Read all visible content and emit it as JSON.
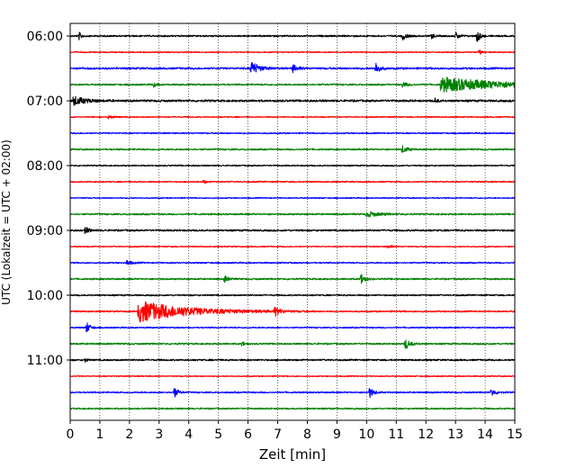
{
  "chart_data": {
    "type": "line",
    "title": "",
    "xlabel": "Zeit  [min]",
    "ylabel": "UTC (Lokalzeit = UTC + 02:00)",
    "xlim": [
      0,
      15
    ],
    "xticks": [
      0,
      1,
      2,
      3,
      4,
      5,
      6,
      7,
      8,
      9,
      10,
      11,
      12,
      13,
      14,
      15
    ],
    "grid": "vertical dotted at each minute",
    "yticks": [
      {
        "label": "06:00",
        "row": 0
      },
      {
        "label": "07:00",
        "row": 4
      },
      {
        "label": "08:00",
        "row": 8
      },
      {
        "label": "09:00",
        "row": 12
      },
      {
        "label": "10:00",
        "row": 16
      },
      {
        "label": "11:00",
        "row": 20
      }
    ],
    "row_minutes": 15,
    "row_colors": [
      "#000000",
      "#ff0000",
      "#0000ff",
      "#008000"
    ],
    "rows": [
      {
        "start": "06:00",
        "noise": 1.0,
        "events": [
          {
            "t": 0.3,
            "amp": 4,
            "dur": 0.1
          },
          {
            "t": 11.2,
            "amp": 5,
            "dur": 0.15
          },
          {
            "t": 12.2,
            "amp": 3,
            "dur": 0.1
          },
          {
            "t": 13.0,
            "amp": 4,
            "dur": 0.15
          },
          {
            "t": 13.7,
            "amp": 10,
            "dur": 0.12
          }
        ]
      },
      {
        "start": "06:15",
        "noise": 0.7,
        "events": [
          {
            "t": 13.8,
            "amp": 3,
            "dur": 0.1
          }
        ]
      },
      {
        "start": "06:30",
        "noise": 1.2,
        "events": [
          {
            "t": 6.1,
            "amp": 8,
            "dur": 0.3
          },
          {
            "t": 7.5,
            "amp": 4,
            "dur": 0.2
          },
          {
            "t": 10.3,
            "amp": 7,
            "dur": 0.15
          }
        ]
      },
      {
        "start": "06:45",
        "noise": 1.0,
        "events": [
          {
            "t": 2.8,
            "amp": 3,
            "dur": 0.1
          },
          {
            "t": 11.2,
            "amp": 3,
            "dur": 0.2
          },
          {
            "t": 12.5,
            "amp": 8,
            "dur": 2.6
          }
        ]
      },
      {
        "start": "07:00",
        "noise": 1.3,
        "events": [
          {
            "t": 0.1,
            "amp": 5,
            "dur": 0.5
          },
          {
            "t": 12.3,
            "amp": 3,
            "dur": 0.1
          }
        ]
      },
      {
        "start": "07:15",
        "noise": 0.7,
        "events": [
          {
            "t": 1.3,
            "amp": 2,
            "dur": 0.2
          }
        ]
      },
      {
        "start": "07:30",
        "noise": 0.8,
        "events": []
      },
      {
        "start": "07:45",
        "noise": 1.0,
        "events": [
          {
            "t": 11.2,
            "amp": 4,
            "dur": 0.2
          }
        ]
      },
      {
        "start": "08:00",
        "noise": 0.8,
        "events": []
      },
      {
        "start": "08:15",
        "noise": 0.8,
        "events": [
          {
            "t": 4.5,
            "amp": 2,
            "dur": 0.1
          }
        ]
      },
      {
        "start": "08:30",
        "noise": 0.7,
        "events": []
      },
      {
        "start": "08:45",
        "noise": 1.0,
        "events": [
          {
            "t": 10.0,
            "amp": 3,
            "dur": 0.5
          }
        ]
      },
      {
        "start": "09:00",
        "noise": 1.1,
        "events": [
          {
            "t": 0.5,
            "amp": 4,
            "dur": 0.15
          }
        ]
      },
      {
        "start": "09:15",
        "noise": 0.7,
        "events": [
          {
            "t": 10.7,
            "amp": 2,
            "dur": 0.2
          }
        ]
      },
      {
        "start": "09:30",
        "noise": 0.8,
        "events": [
          {
            "t": 1.9,
            "amp": 3,
            "dur": 0.2
          }
        ]
      },
      {
        "start": "09:45",
        "noise": 1.0,
        "events": [
          {
            "t": 5.2,
            "amp": 4,
            "dur": 0.15
          },
          {
            "t": 9.8,
            "amp": 7,
            "dur": 0.15
          }
        ]
      },
      {
        "start": "10:00",
        "noise": 0.9,
        "events": []
      },
      {
        "start": "10:15",
        "noise": 0.9,
        "events": [
          {
            "t": 2.3,
            "amp": 12,
            "dur": 2.0
          },
          {
            "t": 6.9,
            "amp": 5,
            "dur": 0.2
          }
        ]
      },
      {
        "start": "10:30",
        "noise": 0.8,
        "events": [
          {
            "t": 0.55,
            "amp": 6,
            "dur": 0.15
          }
        ]
      },
      {
        "start": "10:45",
        "noise": 1.0,
        "events": [
          {
            "t": 5.8,
            "amp": 3,
            "dur": 0.1
          },
          {
            "t": 11.3,
            "amp": 6,
            "dur": 0.2
          }
        ]
      },
      {
        "start": "11:00",
        "noise": 1.0,
        "events": [
          {
            "t": 0.5,
            "amp": 2,
            "dur": 0.1
          }
        ]
      },
      {
        "start": "11:15",
        "noise": 0.7,
        "events": []
      },
      {
        "start": "11:30",
        "noise": 0.9,
        "events": [
          {
            "t": 3.5,
            "amp": 6,
            "dur": 0.15
          },
          {
            "t": 10.1,
            "amp": 6,
            "dur": 0.15
          },
          {
            "t": 14.2,
            "amp": 4,
            "dur": 0.2
          }
        ]
      },
      {
        "start": "11:45",
        "noise": 0.9,
        "events": []
      }
    ]
  }
}
